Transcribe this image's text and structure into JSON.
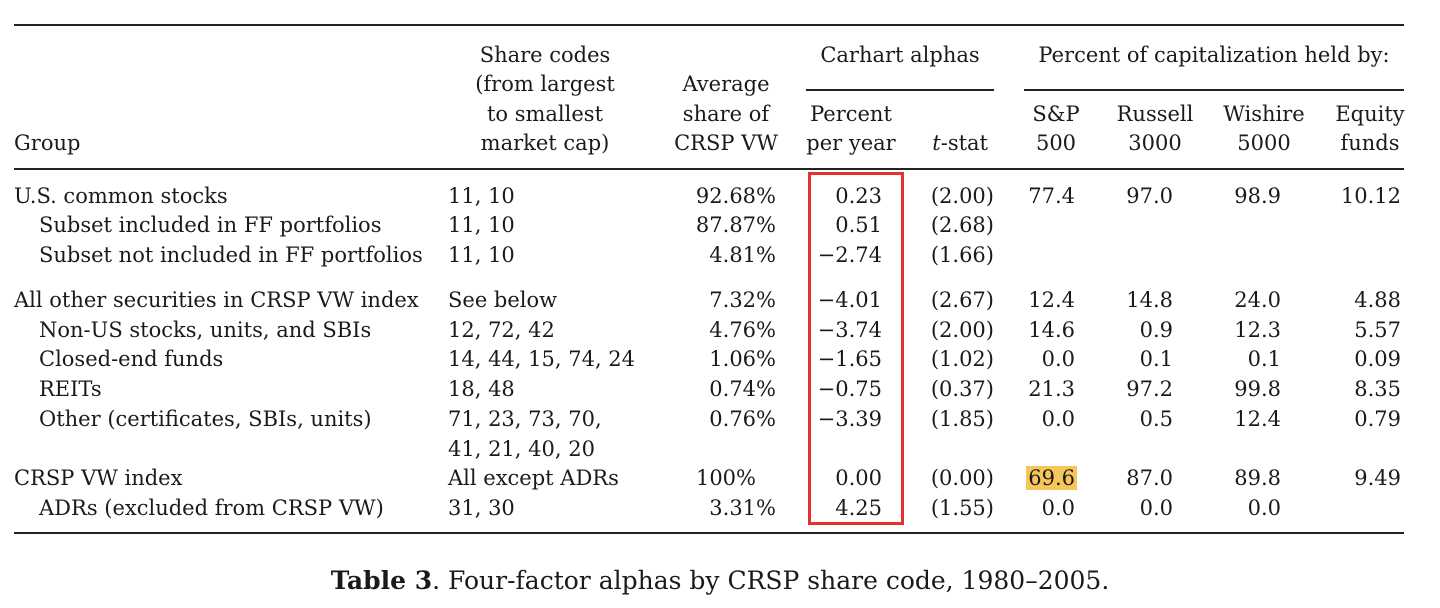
{
  "header": {
    "group": "Group",
    "share_codes": [
      "Share codes",
      "(from largest",
      "to smallest",
      "market cap)"
    ],
    "avg_share": [
      "Average",
      "share of",
      "CRSP VW"
    ],
    "carhart_title": "Carhart alphas",
    "percent_per_year": [
      "Percent",
      "per year"
    ],
    "tstat_var": "t",
    "tstat_rest": "-stat",
    "cap_title": "Percent of capitalization held by:",
    "sp500": [
      "S&P",
      "500"
    ],
    "russell": [
      "Russell",
      "3000"
    ],
    "wishire": [
      "Wishire",
      "5000"
    ],
    "equity": [
      "Equity",
      "funds"
    ]
  },
  "rows": [
    {
      "group": "U.S. common stocks",
      "codes": "11, 10",
      "avg": "92.68%",
      "alpha": "0.23",
      "tstat": "(2.00)",
      "sp": "77.4",
      "russell": "97.0",
      "wishire": "98.9",
      "equity": "10.12"
    },
    {
      "group": "Subset included in FF portfolios",
      "codes": "11, 10",
      "avg": "87.87%",
      "alpha": "0.51",
      "tstat": "(2.68)",
      "sp": "",
      "russell": "",
      "wishire": "",
      "equity": ""
    },
    {
      "group": "Subset not included in FF portfolios",
      "codes": "11, 10",
      "avg": "4.81%",
      "alpha": "−2.74",
      "tstat": "(1.66)",
      "sp": "",
      "russell": "",
      "wishire": "",
      "equity": ""
    },
    {
      "group": "All other securities in CRSP VW index",
      "codes": "See below",
      "avg": "7.32%",
      "alpha": "−4.01",
      "tstat": "(2.67)",
      "sp": "12.4",
      "russell": "14.8",
      "wishire": "24.0",
      "equity": "4.88"
    },
    {
      "group": "Non-US stocks, units, and SBIs",
      "codes": "12, 72, 42",
      "avg": "4.76%",
      "alpha": "−3.74",
      "tstat": "(2.00)",
      "sp": "14.6",
      "russell": "0.9",
      "wishire": "12.3",
      "equity": "5.57"
    },
    {
      "group": "Closed-end funds",
      "codes": "14, 44, 15, 74, 24",
      "avg": "1.06%",
      "alpha": "−1.65",
      "tstat": "(1.02)",
      "sp": "0.0",
      "russell": "0.1",
      "wishire": "0.1",
      "equity": "0.09"
    },
    {
      "group": "REITs",
      "codes": "18, 48",
      "avg": "0.74%",
      "alpha": "−0.75",
      "tstat": "(0.37)",
      "sp": "21.3",
      "russell": "97.2",
      "wishire": "99.8",
      "equity": "8.35"
    },
    {
      "group": "Other (certificates, SBIs, units)",
      "codes": "71, 23, 73, 70,",
      "codes2": "41, 21, 40, 20",
      "avg": "0.76%",
      "alpha": "−3.39",
      "tstat": "(1.85)",
      "sp": "0.0",
      "russell": "0.5",
      "wishire": "12.4",
      "equity": "0.79"
    },
    {
      "group": "CRSP VW index",
      "codes": "All except ADRs",
      "avg": "100%",
      "alpha": "0.00",
      "tstat": "(0.00)",
      "sp": "69.6",
      "russell": "87.0",
      "wishire": "89.8",
      "equity": "9.49"
    },
    {
      "group": "ADRs (excluded from CRSP VW)",
      "codes": "31, 30",
      "avg": "3.31%",
      "alpha": "4.25",
      "tstat": "(1.55)",
      "sp": "0.0",
      "russell": "0.0",
      "wishire": "0.0",
      "equity": ""
    }
  ],
  "caption": {
    "label": "Table 3",
    "text": ". Four-factor alphas by CRSP share code, 1980–2005."
  },
  "colors": {
    "highlight_box": "#e5302c",
    "cell_highlight": "#f7c65a"
  }
}
